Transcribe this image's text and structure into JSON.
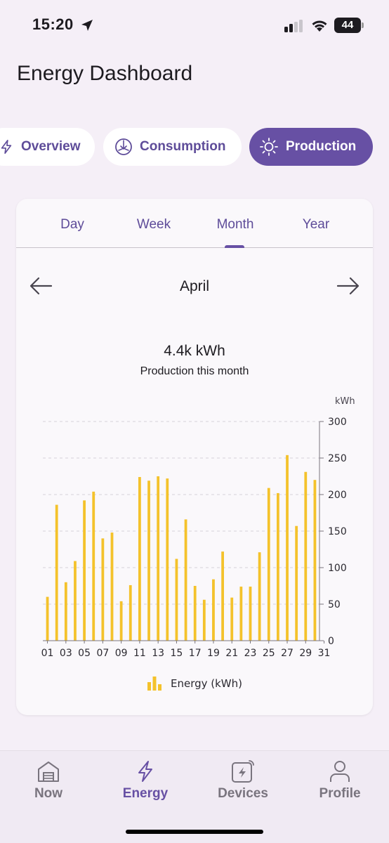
{
  "status_bar": {
    "time": "15:20",
    "battery": "44",
    "icons": [
      "location-arrow-icon",
      "cellular-signal-icon",
      "wifi-icon",
      "battery-icon"
    ]
  },
  "header": {
    "title": "Energy Dashboard"
  },
  "segments": [
    {
      "label": "Overview",
      "icon": "lightning-icon",
      "selected": false
    },
    {
      "label": "Consumption",
      "icon": "consumption-icon",
      "selected": false
    },
    {
      "label": "Production",
      "icon": "sun-icon",
      "selected": true
    }
  ],
  "period_tabs": [
    {
      "label": "Day",
      "selected": false
    },
    {
      "label": "Week",
      "selected": false
    },
    {
      "label": "Month",
      "selected": true
    },
    {
      "label": "Year",
      "selected": false
    }
  ],
  "period": {
    "label": "April",
    "prev_icon": "arrow-left-icon",
    "next_icon": "arrow-right-icon"
  },
  "summary": {
    "value": "4.4k kWh",
    "caption": "Production this month"
  },
  "chart_data": {
    "type": "bar",
    "unit": "kWh",
    "x": [
      "01",
      "02",
      "03",
      "04",
      "05",
      "06",
      "07",
      "08",
      "09",
      "10",
      "11",
      "12",
      "13",
      "14",
      "15",
      "16",
      "17",
      "18",
      "19",
      "20",
      "21",
      "22",
      "23",
      "24",
      "25",
      "26",
      "27",
      "28",
      "29",
      "30"
    ],
    "x_tick_labels": [
      "01",
      "03",
      "05",
      "07",
      "09",
      "11",
      "13",
      "15",
      "17",
      "19",
      "21",
      "23",
      "25",
      "27",
      "29",
      "31"
    ],
    "series": [
      {
        "name": "Energy (kWh)",
        "color": "#f4c22b",
        "values": [
          60,
          186,
          80,
          109,
          192,
          204,
          140,
          148,
          54,
          76,
          224,
          219,
          225,
          222,
          112,
          166,
          75,
          56,
          84,
          122,
          59,
          74,
          74,
          121,
          209,
          202,
          254,
          157,
          231,
          220
        ]
      }
    ],
    "y_ticks": [
      "0",
      "50",
      "100",
      "150",
      "200",
      "250",
      "300"
    ],
    "ylim": [
      0,
      300
    ],
    "grid": true,
    "legend_position": "bottom-center"
  },
  "bottom_nav": [
    {
      "label": "Now",
      "icon": "home-icon",
      "active": false
    },
    {
      "label": "Energy",
      "icon": "lightning-icon",
      "active": true
    },
    {
      "label": "Devices",
      "icon": "device-icon",
      "active": false
    },
    {
      "label": "Profile",
      "icon": "person-icon",
      "active": false
    }
  ],
  "colors": {
    "accent": "#6750a4",
    "bar": "#f4c22b",
    "background": "#f5eff7",
    "card": "#faf8fb"
  }
}
